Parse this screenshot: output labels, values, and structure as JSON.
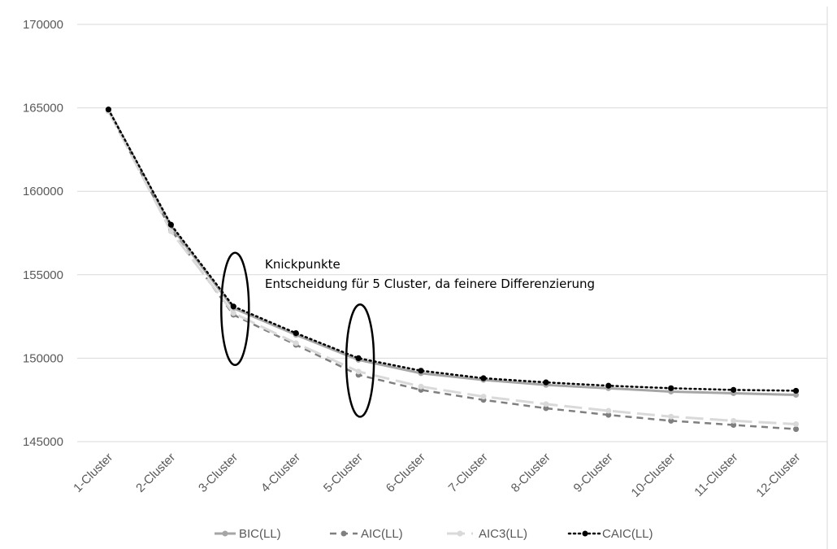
{
  "chart_data": {
    "type": "line",
    "categories": [
      "1-Cluster",
      "2-Cluster",
      "3-Cluster",
      "4-Cluster",
      "5-Cluster",
      "6-Cluster",
      "7-Cluster",
      "8-Cluster",
      "9-Cluster",
      "10-Cluster",
      "11-Cluster",
      "12-Cluster"
    ],
    "series": [
      {
        "name": "BIC(LL)",
        "color": "#a6a6a6",
        "dash": "solid",
        "marker": "circle",
        "values": [
          164900,
          157900,
          153000,
          151400,
          149900,
          149100,
          148700,
          148400,
          148200,
          148000,
          147900,
          147800
        ]
      },
      {
        "name": "AIC(LL)",
        "color": "#7f7f7f",
        "dash": "dashed",
        "marker": "circle",
        "values": [
          164800,
          157700,
          152600,
          150800,
          149000,
          148100,
          147500,
          147000,
          146600,
          146250,
          146000,
          145750
        ]
      },
      {
        "name": "AIC3(LL)",
        "color": "#d9d9d9",
        "dash": "longdash",
        "marker": "circle",
        "values": [
          164800,
          157600,
          152700,
          150900,
          149200,
          148300,
          147700,
          147250,
          146850,
          146500,
          146250,
          146050
        ]
      },
      {
        "name": "CAIC(LL)",
        "color": "#000000",
        "dash": "dotted",
        "marker": "circle",
        "values": [
          164900,
          158000,
          153100,
          151500,
          150000,
          149250,
          148800,
          148550,
          148350,
          148200,
          148100,
          148050
        ]
      }
    ],
    "yticks": [
      145000,
      150000,
      155000,
      160000,
      165000,
      170000
    ],
    "ylim": [
      145000,
      170000
    ],
    "grid": "horizontal",
    "legend_position": "bottom",
    "annotations": {
      "line1": "Knickpunkte",
      "line2": "Entscheidung für 5 Cluster, da feinere Differenzierung",
      "ellipses_at": [
        "3-Cluster",
        "5-Cluster"
      ]
    }
  }
}
